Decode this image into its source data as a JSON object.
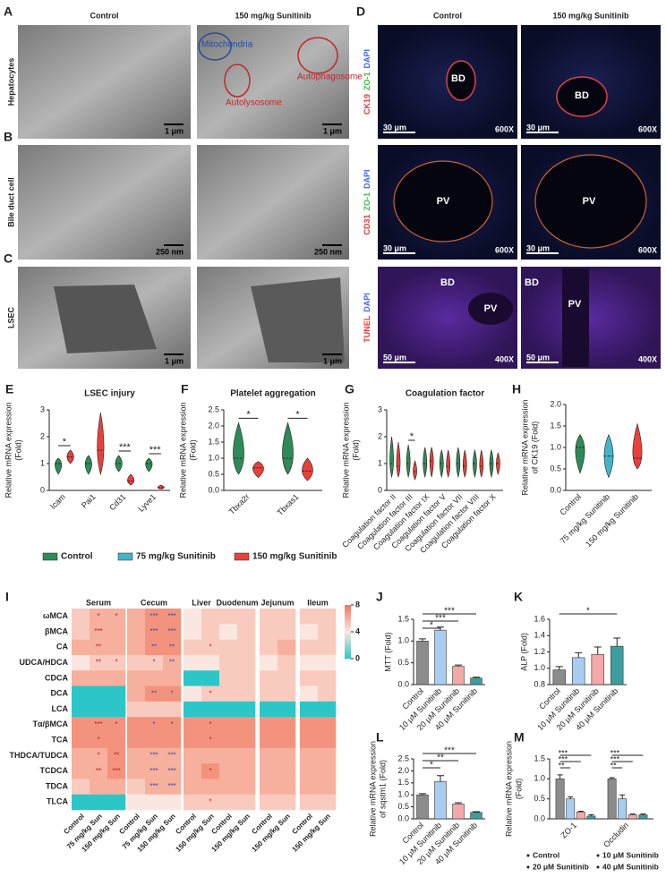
{
  "images": {
    "A": {
      "letter": "A",
      "columns": [
        "Control",
        "150 mg/kg Sunitinib"
      ],
      "row_label": "Hepatocytes",
      "labels": [
        "Mitochondria",
        "Autophagosome",
        "Autolysosome"
      ],
      "scale_bars": [
        "1 μm",
        "1 μm"
      ]
    },
    "B": {
      "letter": "B",
      "row_label": "Bile duct cell",
      "scale_bars": [
        "250 nm",
        "250 nm"
      ]
    },
    "C": {
      "letter": "C",
      "row_label": "LSEC",
      "scale_bars": [
        "1 μm",
        "1 μm"
      ]
    },
    "D": {
      "letter": "D",
      "columns": [
        "Control",
        "150 mg/kg Sunitinib"
      ],
      "rows": [
        {
          "stains": [
            "CK19",
            "ZO-1",
            "DAPI"
          ],
          "stain_colors": [
            "#e53935",
            "#3ec03e",
            "#3a66ff"
          ],
          "labels": [
            [
              "BD"
            ],
            [
              "BD"
            ]
          ],
          "scale_bars": [
            "30 μm",
            "30 μm"
          ],
          "magnification": [
            "600X",
            "600X"
          ]
        },
        {
          "stains": [
            "CD31",
            "ZO-1",
            "DAPI"
          ],
          "stain_colors": [
            "#e53935",
            "#3ec03e",
            "#3a66ff"
          ],
          "labels": [
            [
              "PV"
            ],
            [
              "PV"
            ]
          ],
          "scale_bars": [
            "30 μm",
            "30 μm"
          ],
          "magnification": [
            "600X",
            "600X"
          ]
        },
        {
          "stains": [
            "TUNEL",
            "DAPI"
          ],
          "stain_colors": [
            "#e53935",
            "#3a66ff"
          ],
          "labels": [
            [
              "BD",
              "PV"
            ],
            [
              "BD",
              "PV"
            ]
          ],
          "scale_bars": [
            "50 μm",
            "50 μm"
          ],
          "magnification": [
            "400X",
            "400X"
          ]
        }
      ]
    }
  },
  "shared_legend": [
    {
      "name": "Control",
      "color": "#2e8b57"
    },
    {
      "name": "75 mg/kg Sunitinib",
      "color": "#45b4c8"
    },
    {
      "name": "150 mg/kg Sunitinib",
      "color": "#e8413a"
    }
  ],
  "chart_data": [
    {
      "type": "violin",
      "panel": "E",
      "title": "LSEC injury",
      "ylabel": [
        "Relative mRNA expression",
        "(Fold)"
      ],
      "categories": [
        "Icam",
        "Pai1",
        "Cd31",
        "Lyve1"
      ],
      "series": [
        {
          "name": "Control",
          "color": "#2e8b57",
          "values": [
            1.0,
            1.0,
            1.0,
            1.0
          ],
          "ranges": [
            [
              0.6,
              1.2
            ],
            [
              0.6,
              1.3
            ],
            [
              0.7,
              1.3
            ],
            [
              0.7,
              1.2
            ]
          ]
        },
        {
          "name": "150 mg/kg Sunitinib",
          "color": "#e8413a",
          "values": [
            1.25,
            1.5,
            0.35,
            0.1
          ],
          "ranges": [
            [
              1.0,
              1.5
            ],
            [
              0.6,
              2.9
            ],
            [
              0.2,
              0.6
            ],
            [
              0.05,
              0.2
            ]
          ]
        }
      ],
      "significance": [
        "*",
        null,
        "***",
        "***"
      ],
      "ylim": [
        0,
        3
      ],
      "yticks": [
        0,
        1,
        2,
        3
      ]
    },
    {
      "type": "violin",
      "panel": "F",
      "title": "Platelet aggregation",
      "ylabel": [
        "Relative mRNA expression",
        "(Fold)"
      ],
      "categories": [
        "Tbxa2r",
        "Tbxas1"
      ],
      "series": [
        {
          "name": "Control",
          "color": "#2e8b57",
          "values": [
            1.0,
            1.0
          ],
          "ranges": [
            [
              0.5,
              2.1
            ],
            [
              0.5,
              2.1
            ]
          ]
        },
        {
          "name": "150 mg/kg Sunitinib",
          "color": "#e8413a",
          "values": [
            0.7,
            0.6
          ],
          "ranges": [
            [
              0.4,
              0.9
            ],
            [
              0.3,
              1.0
            ]
          ]
        }
      ],
      "significance": [
        "*",
        "*"
      ],
      "ylim": [
        0,
        2.5
      ],
      "yticks": [
        {
          "value": 0,
          "label": "0.0"
        },
        0.5,
        {
          "value": 1,
          "label": "1.0"
        },
        1.5,
        {
          "value": 2,
          "label": "2.0"
        },
        2.5
      ]
    },
    {
      "type": "violin",
      "panel": "G",
      "title": "Coagulation factor",
      "ylabel": [
        "Relative mRNA expression",
        "(Fold)"
      ],
      "categories": [
        "Coagulation factor II",
        "Coagulation factor III",
        "Coagulation factor IX",
        "Coagulation factor V",
        "Coagulation factor VII",
        "Coagulation factor VIII",
        "Coagulation factor X"
      ],
      "series": [
        {
          "name": "Control",
          "color": "#2e8b57",
          "values": [
            1.0,
            1.0,
            1.0,
            1.0,
            1.0,
            1.0,
            1.0
          ],
          "ranges": [
            [
              0.5,
              2.0
            ],
            [
              0.5,
              1.7
            ],
            [
              0.5,
              1.6
            ],
            [
              0.5,
              1.5
            ],
            [
              0.5,
              1.6
            ],
            [
              0.5,
              1.5
            ],
            [
              0.5,
              1.5
            ]
          ]
        },
        {
          "name": "150 mg/kg Sunitinib",
          "color": "#e8413a",
          "values": [
            0.9,
            0.7,
            1.1,
            0.9,
            0.9,
            0.9,
            1.0
          ],
          "ranges": [
            [
              0.5,
              1.8
            ],
            [
              0.4,
              1.1
            ],
            [
              0.5,
              1.6
            ],
            [
              0.5,
              1.5
            ],
            [
              0.5,
              1.5
            ],
            [
              0.5,
              1.5
            ],
            [
              0.6,
              1.4
            ]
          ]
        }
      ],
      "significance": [
        null,
        "*",
        null,
        null,
        null,
        null,
        null
      ],
      "ylim": [
        0,
        3
      ],
      "yticks": [
        0,
        1,
        2,
        3
      ]
    },
    {
      "type": "violin",
      "panel": "H",
      "ylabel": [
        "Relative mRNA expression",
        "of CK19 (Fold)"
      ],
      "categories": [
        "Control",
        "75 mg/kg Sunitinib",
        "150 mg/kg Sunitinib"
      ],
      "values": [
        1.0,
        0.8,
        0.75
      ],
      "ranges": [
        [
          0.4,
          1.3
        ],
        [
          0.3,
          1.3
        ],
        [
          0.5,
          1.55
        ]
      ],
      "colors": [
        "#2e8b57",
        "#45b4c8",
        "#e8413a"
      ],
      "ylim": [
        0,
        2
      ],
      "yticks": [
        {
          "value": 0,
          "label": "0.0"
        },
        0.5,
        {
          "value": 1,
          "label": "1.0"
        },
        1.5,
        {
          "value": 2,
          "label": "2.0"
        }
      ]
    },
    {
      "type": "heatmap",
      "panel": "I",
      "rows": [
        "ωMCA",
        "βMCA",
        "CA",
        "UDCA/HDCA",
        "CDCA",
        "DCA",
        "LCA",
        "Tα/βMCA",
        "TCA",
        "THDCA/TUDCA",
        "TCDCA",
        "TDCA",
        "TLCA"
      ],
      "groups": [
        {
          "name": "Serum",
          "columns": [
            "Control",
            "75 mg/kg Sun",
            "150 mg/kg Sun"
          ]
        },
        {
          "name": "Cecum",
          "columns": [
            "Control",
            "75 mg/kg Sun",
            "150 mg/kg Sun"
          ]
        },
        {
          "name": "Liver",
          "columns": [
            "Control",
            "150 mg/kg Sun"
          ]
        },
        {
          "name": "Duodenum",
          "columns": [
            "Control",
            "150 mg/kg Sun"
          ]
        },
        {
          "name": "Jejunum",
          "columns": [
            "Control",
            "150 mg/kg Sun"
          ]
        },
        {
          "name": "Ileum",
          "columns": [
            "Control",
            "150 mg/kg Sun"
          ]
        }
      ],
      "values": [
        [
          5,
          6,
          6,
          6,
          7,
          7,
          4,
          5,
          5,
          5,
          5,
          5,
          5,
          5
        ],
        [
          5,
          6,
          6,
          6,
          7,
          7,
          4,
          5,
          4,
          5,
          5,
          5,
          4,
          5
        ],
        [
          6,
          6,
          6,
          6,
          7,
          7,
          5,
          5,
          5,
          5,
          5,
          6,
          5,
          5
        ],
        [
          4,
          5,
          5,
          5,
          5,
          6,
          4,
          4,
          5,
          5,
          4,
          5,
          4,
          4
        ],
        [
          6,
          6,
          6,
          6,
          6,
          6,
          0,
          0,
          5,
          5,
          5,
          5,
          5,
          5
        ],
        [
          0,
          0,
          0,
          6,
          7,
          7,
          4,
          5,
          5,
          5,
          5,
          5,
          4,
          5
        ],
        [
          0,
          0,
          0,
          5,
          5,
          5,
          0,
          0,
          0,
          0,
          0,
          0,
          0,
          0
        ],
        [
          7,
          7,
          7,
          7,
          7,
          7,
          7,
          7,
          7,
          7,
          7,
          7,
          7,
          7
        ],
        [
          7,
          7,
          7,
          7,
          7,
          7,
          7,
          7,
          7,
          7,
          7,
          7,
          7,
          7
        ],
        [
          6,
          6,
          7,
          6,
          6,
          6,
          6,
          6,
          6,
          6,
          6,
          6,
          6,
          6
        ],
        [
          6,
          6,
          7,
          6,
          6,
          6,
          6,
          7,
          6,
          6,
          6,
          6,
          6,
          6
        ],
        [
          5,
          6,
          6,
          5,
          6,
          6,
          6,
          6,
          6,
          6,
          6,
          6,
          6,
          6
        ],
        [
          0,
          0,
          0,
          4,
          4,
          4,
          5,
          5,
          5,
          5,
          5,
          5,
          5,
          5
        ]
      ],
      "cell_labels": [
        [
          null,
          "*",
          "*",
          null,
          "***",
          "***",
          null,
          null,
          null,
          null,
          null,
          null,
          null,
          null
        ],
        [
          null,
          "***",
          null,
          null,
          "***",
          "***",
          null,
          null,
          null,
          null,
          null,
          null,
          null,
          null
        ],
        [
          null,
          "**",
          null,
          null,
          "**",
          "**",
          null,
          "*",
          null,
          null,
          null,
          null,
          null,
          null
        ],
        [
          null,
          "**",
          "*",
          null,
          "*",
          "**",
          null,
          null,
          null,
          null,
          null,
          null,
          null,
          null
        ],
        [
          null,
          null,
          null,
          null,
          null,
          null,
          null,
          null,
          null,
          null,
          null,
          null,
          null,
          null
        ],
        [
          null,
          null,
          null,
          null,
          "**",
          "*",
          null,
          "*",
          null,
          null,
          null,
          null,
          null,
          null
        ],
        [
          null,
          null,
          null,
          null,
          null,
          null,
          null,
          null,
          null,
          null,
          null,
          null,
          null,
          null
        ],
        [
          null,
          "***",
          "*",
          null,
          "*",
          "*",
          null,
          "*",
          null,
          null,
          null,
          null,
          null,
          null
        ],
        [
          null,
          "*",
          null,
          null,
          null,
          null,
          null,
          "*",
          null,
          null,
          null,
          null,
          null,
          null
        ],
        [
          null,
          "*",
          "**",
          null,
          "***",
          "***",
          null,
          null,
          null,
          null,
          null,
          null,
          null,
          null
        ],
        [
          null,
          "**",
          "***",
          null,
          "***",
          "***",
          null,
          "*",
          null,
          null,
          null,
          null,
          null,
          null
        ],
        [
          null,
          null,
          null,
          null,
          "***",
          "***",
          null,
          null,
          null,
          null,
          null,
          null,
          null,
          null
        ],
        [
          null,
          null,
          null,
          null,
          null,
          null,
          null,
          "*",
          null,
          null,
          null,
          null,
          null,
          null
        ]
      ],
      "colorbar": {
        "lim": [
          0,
          8
        ],
        "ticks": [
          0,
          4,
          8
        ],
        "colors": [
          "#2cc6c8",
          "#fbe7e0",
          "#f2775c"
        ]
      }
    },
    {
      "type": "bar",
      "panel": "J",
      "ylabel": [
        "MTT (Fold)"
      ],
      "categories": [
        "Control",
        "10 μM Sunitinib",
        "20 μM Sunitinib",
        "40 μM Sunitinib"
      ],
      "values": [
        1.0,
        1.25,
        0.42,
        0.15
      ],
      "errors": [
        0.05,
        0.07,
        0.03,
        0.02
      ],
      "colors": [
        "#8c8c8c",
        "#a9cdf2",
        "#f4a9a9",
        "#3e9e9e"
      ],
      "comparisons": [
        "*",
        "***",
        "***"
      ],
      "ylim": [
        0,
        1.5
      ],
      "yticks": [
        {
          "value": 0,
          "label": "0.0"
        },
        0.5,
        {
          "value": 1,
          "label": "1.0"
        },
        1.5
      ]
    },
    {
      "type": "bar",
      "panel": "K",
      "ylabel": [
        "ALP (Fold)"
      ],
      "categories": [
        "Control",
        "10 μM Sunitinib",
        "20 μM Sunitinib",
        "40 μM Sunitinib"
      ],
      "values": [
        0.98,
        1.13,
        1.17,
        1.27
      ],
      "errors": [
        0.04,
        0.06,
        0.09,
        0.1
      ],
      "colors": [
        "#8c8c8c",
        "#a9cdf2",
        "#f4a9a9",
        "#3e9e9e"
      ],
      "comparisons": [
        null,
        null,
        "*"
      ],
      "ylim": [
        0.8,
        1.6
      ],
      "yticks": [
        0.8,
        {
          "value": 1,
          "label": "1.0"
        },
        1.2,
        1.4,
        1.6
      ]
    },
    {
      "type": "bar",
      "panel": "L",
      "ylabel": [
        "Relative mRNA expression",
        "of sqstm1 (Fold)"
      ],
      "categories": [
        "Control",
        "10 μM Sunitinib",
        "20 μM Sunitinib",
        "40 μM Sunitinib"
      ],
      "values": [
        1.0,
        1.55,
        0.62,
        0.27
      ],
      "errors": [
        0.05,
        0.25,
        0.05,
        0.03
      ],
      "colors": [
        "#8c8c8c",
        "#a9cdf2",
        "#f4a9a9",
        "#3e9e9e"
      ],
      "comparisons": [
        "*",
        "**",
        "***"
      ],
      "ylim": [
        0,
        2.5
      ],
      "yticks": [
        {
          "value": 0,
          "label": "0.0"
        },
        0.5,
        {
          "value": 1,
          "label": "1.0"
        },
        1.5,
        {
          "value": 2,
          "label": "2.0"
        },
        2.5
      ]
    },
    {
      "type": "grouped_bar",
      "panel": "M",
      "ylabel": [
        "Relative mRNA expression",
        "(Fold)"
      ],
      "categories": [
        "ZO-1",
        "Occludin"
      ],
      "series": [
        {
          "name": "Control",
          "color": "#8c8c8c",
          "values": [
            1.0,
            1.0
          ],
          "errors": [
            0.1,
            0.03
          ]
        },
        {
          "name": "10 μM Sunitinib",
          "color": "#a9cdf2",
          "values": [
            0.5,
            0.5
          ],
          "errors": [
            0.05,
            0.1
          ]
        },
        {
          "name": "20 μM Sunitinib",
          "color": "#f4a9a9",
          "values": [
            0.17,
            0.1
          ],
          "errors": [
            0.02,
            0.02
          ]
        },
        {
          "name": "40 μM Sunitinib",
          "color": "#3e9e9e",
          "values": [
            0.07,
            0.1
          ],
          "errors": [
            0.03,
            0.02
          ]
        }
      ],
      "comparisons": [
        [
          "**",
          "***",
          "***"
        ],
        [
          "**",
          "***",
          "***"
        ]
      ],
      "ylim": [
        0,
        1.5
      ],
      "yticks": [
        {
          "value": 0,
          "label": "0.0"
        },
        0.5,
        {
          "value": 1,
          "label": "1.0"
        },
        1.5
      ]
    }
  ]
}
